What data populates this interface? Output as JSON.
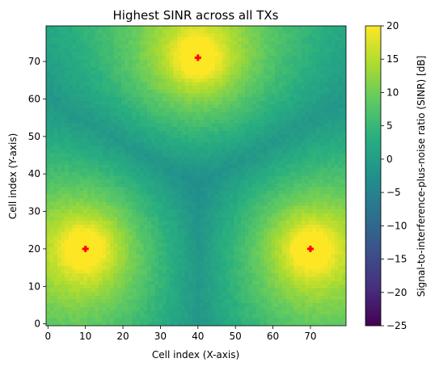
{
  "chart_data": {
    "type": "heatmap",
    "title": "Highest SINR across all TXs",
    "xlabel": "Cell index (X-axis)",
    "ylabel": "Cell index (Y-axis)",
    "colorbar_label": "Signal-to-interference-plus-noise ratio (SINR) [dB]",
    "colormap": "viridis",
    "grid": false,
    "xlim": [
      -0.5,
      79.5
    ],
    "ylim": [
      -0.5,
      79.5
    ],
    "x_ticks": [
      0,
      10,
      20,
      30,
      40,
      50,
      60,
      70
    ],
    "y_ticks": [
      0,
      10,
      20,
      30,
      40,
      50,
      60,
      70
    ],
    "grid_cells": [
      80,
      80
    ],
    "vmin": -25,
    "vmax": 20,
    "colorbar_ticks": [
      20,
      15,
      10,
      5,
      0,
      -5,
      -10,
      -15,
      -20,
      -25
    ],
    "transmitters": [
      {
        "x": 40,
        "y": 71
      },
      {
        "x": 10,
        "y": 20
      },
      {
        "x": 70,
        "y": 20
      }
    ],
    "marker_color": "#ff0000",
    "approx_value_range": [
      -12,
      20
    ]
  }
}
